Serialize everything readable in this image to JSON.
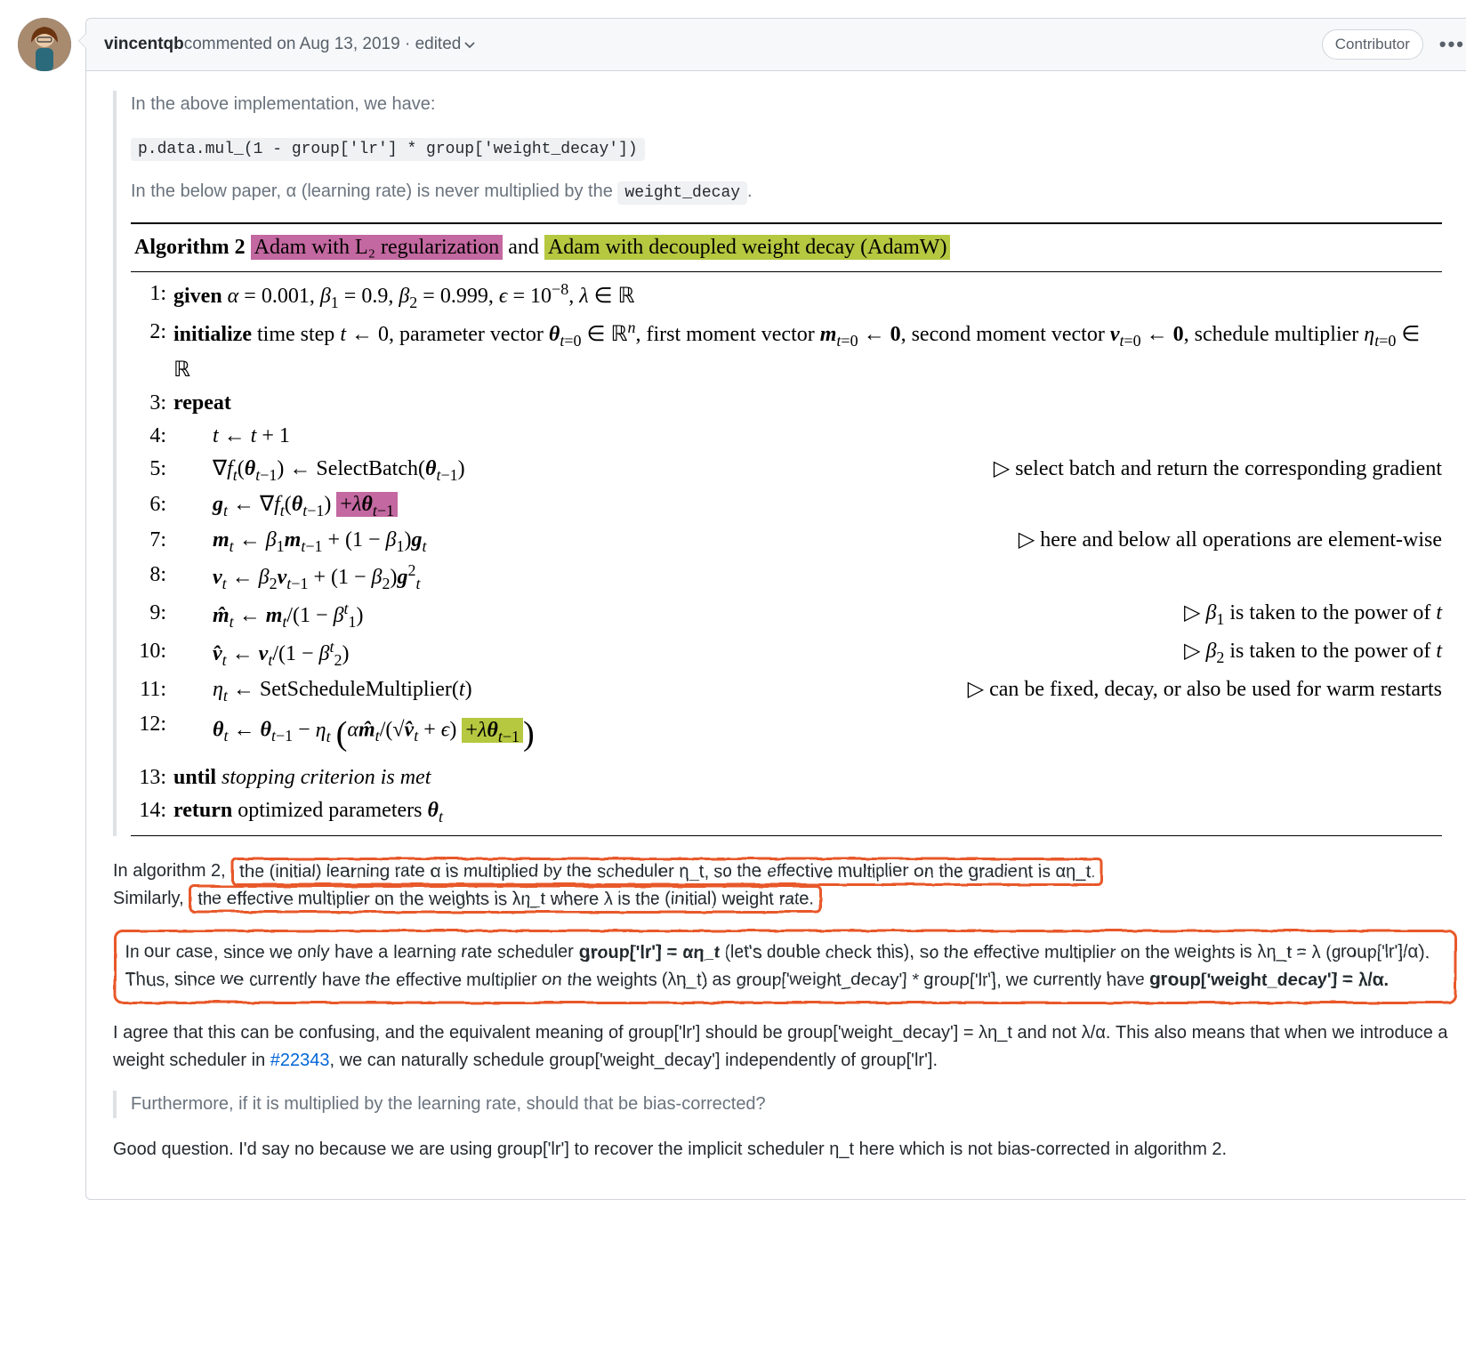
{
  "comment": {
    "author": "vincentqb",
    "meta": " commented on Aug 13, 2019 · edited ",
    "badge": "Contributor"
  },
  "quote": {
    "l1": "In the above implementation, we have:",
    "code": "p.data.mul_(1 - group['lr'] * group['weight_decay'])",
    "l2a": "In the below paper, α (learning rate) is never multiplied by the ",
    "l2code": "weight_decay",
    "l2b": "."
  },
  "algo": {
    "title_pre": "Algorithm 2 ",
    "pink_title": "Adam with L₂ regularization",
    "mid": " and ",
    "green_title": "Adam with decoupled weight decay (AdamW)",
    "lines": [
      {
        "n": "1:",
        "left": "<b>given</b> <span class='it'>α</span> = 0.001, <span class='it'>β</span><span class='sub'>1</span> = 0.9, <span class='it'>β</span><span class='sub'>2</span> = 0.999, <span class='it'>ϵ</span> = 10<span class='sup'>−8</span>, <span class='it'>λ</span> ∈ ℝ",
        "right": ""
      },
      {
        "n": "2:",
        "left": "<b>initialize</b> time step <span class='it'>t</span> ← 0, parameter vector <b><span class='it'>θ</span></b><span class='sub'><span class='it'>t</span>=0</span> ∈ ℝ<span class='sup'><span class='it'>n</span></span>, first moment vector <b><span class='it'>m</span></b><span class='sub'><span class='it'>t</span>=0</span> ← <b>0</b>, second moment vector <b><span class='it'>v</span></b><span class='sub'><span class='it'>t</span>=0</span> ← <b>0</b>, schedule multiplier <span class='it'>η</span><span class='sub'><span class='it'>t</span>=0</span> ∈ ℝ",
        "right": ""
      },
      {
        "n": "3:",
        "left": "<b>repeat</b>",
        "right": ""
      },
      {
        "n": "4:",
        "left": "<span class='aindent'></span><span class='it'>t</span> ← <span class='it'>t</span> + 1",
        "right": ""
      },
      {
        "n": "5:",
        "left": "<span class='aindent'></span>∇<span class='it'>f<span class='sub'>t</span></span>(<b><span class='it'>θ</span></b><span class='sub'><span class='it'>t</span>−1</span>) ← SelectBatch(<b><span class='it'>θ</span></b><span class='sub'><span class='it'>t</span>−1</span>)",
        "right": "<span class='tri'></span>select batch and return the corresponding gradient"
      },
      {
        "n": "6:",
        "left": "<span class='aindent'></span><b><span class='it'>g</span></b><span class='sub'><span class='it'>t</span></span> ← ∇<span class='it'>f<span class='sub'>t</span></span>(<b><span class='it'>θ</span></b><span class='sub'><span class='it'>t</span>−1</span>) <span class='hl-pink'>+<span class='it'>λ</span><b><span class='it'>θ</span></b><span class='sub'><span class='it'>t</span>−1</span></span>",
        "right": ""
      },
      {
        "n": "7:",
        "left": "<span class='aindent'></span><b><span class='it'>m</span></b><span class='sub'><span class='it'>t</span></span> ← <span class='it'>β</span><span class='sub'>1</span><b><span class='it'>m</span></b><span class='sub'><span class='it'>t</span>−1</span> + (1 − <span class='it'>β</span><span class='sub'>1</span>)<b><span class='it'>g</span></b><span class='sub'><span class='it'>t</span></span>",
        "right": "<span class='tri'></span>here and below all operations are element-wise"
      },
      {
        "n": "8:",
        "left": "<span class='aindent'></span><b><span class='it'>v</span></b><span class='sub'><span class='it'>t</span></span> ← <span class='it'>β</span><span class='sub'>2</span><b><span class='it'>v</span></b><span class='sub'><span class='it'>t</span>−1</span> + (1 − <span class='it'>β</span><span class='sub'>2</span>)<b><span class='it'>g</span></b><span class='sup'>2</span><span class='sub'><span class='it'>t</span></span>",
        "right": ""
      },
      {
        "n": "9:",
        "left": "<span class='aindent'></span><b><span class='it'>m̂</span></b><span class='sub'><span class='it'>t</span></span> ← <b><span class='it'>m</span></b><span class='sub'><span class='it'>t</span></span>/(1 − <span class='it'>β</span><span class='sup'><span class='it'>t</span></span><span class='sub'>1</span>)",
        "right": "<span class='tri'></span><span class='it'>β</span><span class='sub'>1</span> is taken to the power of <span class='it'>t</span>"
      },
      {
        "n": "10:",
        "left": "<span class='aindent'></span><b><span class='it'>v̂</span></b><span class='sub'><span class='it'>t</span></span> ← <b><span class='it'>v</span></b><span class='sub'><span class='it'>t</span></span>/(1 − <span class='it'>β</span><span class='sup'><span class='it'>t</span></span><span class='sub'>2</span>)",
        "right": "<span class='tri'></span><span class='it'>β</span><span class='sub'>2</span> is taken to the power of <span class='it'>t</span>"
      },
      {
        "n": "11:",
        "left": "<span class='aindent'></span><span class='it'>η<span class='sub'>t</span></span> ← SetScheduleMultiplier(<span class='it'>t</span>)",
        "right": "<span class='tri'></span>can be fixed, decay, or also be used for warm restarts"
      },
      {
        "n": "12:",
        "left": "<span class='aindent'></span><b><span class='it'>θ</span></b><span class='sub'><span class='it'>t</span></span> ← <b><span class='it'>θ</span></b><span class='sub'><span class='it'>t</span>−1</span> − <span class='it'>η<span class='sub'>t</span></span> <span style='font-size:1.6em;vertical-align:-0.25em'>(</span><span class='it'>α</span><b><span class='it'>m̂</span></b><span class='sub'><span class='it'>t</span></span>/(√<b><span class='it'>v̂</span></b><span class='sub'><span class='it'>t</span></span> + <span class='it'>ϵ</span>) <span class='hl-green'>+<span class='it'>λ</span><b><span class='it'>θ</span></b><span class='sub'><span class='it'>t</span>−1</span></span><span style='font-size:1.6em;vertical-align:-0.25em'>)</span>",
        "right": ""
      },
      {
        "n": "13:",
        "left": "<b>until</b> <span class='it'>stopping criterion is met</span>",
        "right": ""
      },
      {
        "n": "14:",
        "left": "<b>return</b> optimized parameters <b><span class='it'>θ</span></b><span class='sub'><span class='it'>t</span></span>",
        "right": ""
      }
    ]
  },
  "body": {
    "p1_a": "In algorithm 2, ",
    "p1_box1": "the (initial) learning rate α is multiplied by the scheduler η_t, so the effective multiplier on the gradient is αη_t.",
    "p1_mid": " Similarly, ",
    "p1_box2": "the effective multiplier on the weights is λη_t where λ is the (initial) weight rate.",
    "p2_box_html": "In our case, since we only have a learning rate scheduler <b>group['lr'] = αη_t</b> (let's double check this), so the effective multiplier on the weights is λη_t = λ (group['lr']/α). Thus, since we currently have the effective multiplier on the weights (λη_t) as group['weight_decay'] * group['lr'], we currently have <b>group['weight_decay'] = λ/α.</b>",
    "p3_a": "I agree that this can be confusing, and the equivalent meaning of group['lr'] should be group['weight_decay'] = λη_t and not λ/α. This also means that when we introduce a weight scheduler in ",
    "p3_link": "#22343",
    "p3_b": ", we can naturally schedule group['weight_decay'] independently of group['lr'].",
    "q2": "Furthermore, if it is multiplied by the learning rate, should that be bias-corrected?",
    "p4": "Good question. I'd say no because we are using group['lr'] to recover the implicit scheduler η_t here which is not bias-corrected in algorithm 2."
  },
  "colors": {
    "pink": "#c368a0",
    "green": "#b5c840",
    "hand": "#e8592b",
    "link": "#0366d6",
    "border": "#d1d5da",
    "headbg": "#f6f8fa"
  }
}
